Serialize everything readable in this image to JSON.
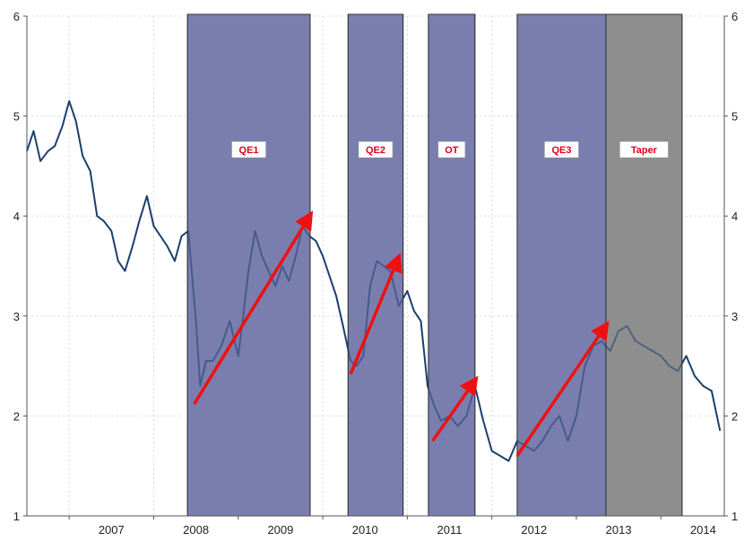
{
  "colors": {
    "qe_band": "#7a7fb0",
    "taper_band": "#8e8e8e",
    "series_line": "#1b3f6e",
    "arrow": "#f01010",
    "grid": "#d8d8d8",
    "label_text": "#e0001b"
  },
  "chart_data": {
    "type": "line",
    "title": "",
    "xlabel": "",
    "ylabel": "",
    "xlim": [
      2006.5,
      2014.75
    ],
    "ylim": [
      1,
      6
    ],
    "grid": true,
    "x_ticks": [
      {
        "value": 2007.0,
        "label": "2007"
      },
      {
        "value": 2008.0,
        "label": "2008"
      },
      {
        "value": 2009.0,
        "label": "2009"
      },
      {
        "value": 2010.0,
        "label": "2010"
      },
      {
        "value": 2011.0,
        "label": "2011"
      },
      {
        "value": 2012.0,
        "label": "2012"
      },
      {
        "value": 2013.0,
        "label": "2013"
      },
      {
        "value": 2014.0,
        "label": "2014"
      }
    ],
    "y_ticks": [
      {
        "value": 1,
        "label": "1"
      },
      {
        "value": 2,
        "label": "2"
      },
      {
        "value": 3,
        "label": "3"
      },
      {
        "value": 4,
        "label": "4"
      },
      {
        "value": 5,
        "label": "5"
      },
      {
        "value": 6,
        "label": "6"
      }
    ],
    "bands": [
      {
        "label": "QE1",
        "x0": 2008.4,
        "x1": 2009.85,
        "kind": "qe"
      },
      {
        "label": "QE2",
        "x0": 2010.3,
        "x1": 2010.95,
        "kind": "qe"
      },
      {
        "label": "OT",
        "x0": 2011.25,
        "x1": 2011.8,
        "kind": "qe"
      },
      {
        "label": "QE3",
        "x0": 2012.3,
        "x1": 2013.35,
        "kind": "qe"
      },
      {
        "label": "Taper",
        "x0": 2013.35,
        "x1": 2014.25,
        "kind": "taper"
      }
    ],
    "arrows": [
      {
        "x0": 2008.48,
        "y0": 2.12,
        "x1": 2009.83,
        "y1": 3.98
      },
      {
        "x0": 2010.33,
        "y0": 2.42,
        "x1": 2010.88,
        "y1": 3.55
      },
      {
        "x0": 2011.3,
        "y0": 1.75,
        "x1": 2011.78,
        "y1": 2.33
      },
      {
        "x0": 2012.3,
        "y0": 1.6,
        "x1": 2013.33,
        "y1": 2.88
      }
    ],
    "series": [
      {
        "x": [
          2006.5,
          2006.58,
          2006.66,
          2006.75,
          2006.83,
          2006.92,
          2007.0,
          2007.08,
          2007.16,
          2007.25,
          2007.33,
          2007.41,
          2007.5,
          2007.58,
          2007.66,
          2007.75,
          2007.83,
          2007.92,
          2008.0,
          2008.08,
          2008.16,
          2008.25,
          2008.33,
          2008.41,
          2008.45,
          2008.5,
          2008.55,
          2008.62,
          2008.7,
          2008.8,
          2008.9,
          2009.0,
          2009.06,
          2009.12,
          2009.2,
          2009.28,
          2009.36,
          2009.44,
          2009.52,
          2009.6,
          2009.68,
          2009.76,
          2009.84,
          2009.92,
          2010.0,
          2010.08,
          2010.16,
          2010.24,
          2010.33,
          2010.4,
          2010.48,
          2010.56,
          2010.64,
          2010.72,
          2010.8,
          2010.9,
          2011.0,
          2011.08,
          2011.16,
          2011.24,
          2011.32,
          2011.4,
          2011.5,
          2011.6,
          2011.7,
          2011.8,
          2011.9,
          2012.0,
          2012.1,
          2012.2,
          2012.3,
          2012.4,
          2012.5,
          2012.6,
          2012.7,
          2012.8,
          2012.9,
          2013.0,
          2013.1,
          2013.2,
          2013.3,
          2013.4,
          2013.5,
          2013.6,
          2013.7,
          2013.8,
          2013.9,
          2014.0,
          2014.1,
          2014.2,
          2014.3,
          2014.4,
          2014.5,
          2014.6,
          2014.7
        ],
        "values": [
          4.65,
          4.85,
          4.55,
          4.65,
          4.7,
          4.9,
          5.15,
          4.95,
          4.6,
          4.45,
          4.0,
          3.95,
          3.85,
          3.55,
          3.45,
          3.7,
          3.95,
          4.2,
          3.9,
          3.8,
          3.7,
          3.55,
          3.8,
          3.85,
          3.45,
          2.95,
          2.3,
          2.55,
          2.55,
          2.7,
          2.95,
          2.6,
          3.0,
          3.45,
          3.85,
          3.6,
          3.45,
          3.3,
          3.5,
          3.35,
          3.6,
          3.9,
          3.8,
          3.75,
          3.6,
          3.4,
          3.2,
          2.9,
          2.55,
          2.5,
          2.6,
          3.3,
          3.55,
          3.5,
          3.45,
          3.1,
          3.25,
          3.05,
          2.95,
          2.3,
          2.1,
          1.95,
          2.0,
          1.9,
          2.0,
          2.3,
          1.95,
          1.65,
          1.6,
          1.55,
          1.75,
          1.7,
          1.65,
          1.75,
          1.9,
          2.0,
          1.75,
          2.0,
          2.5,
          2.7,
          2.75,
          2.65,
          2.85,
          2.9,
          2.75,
          2.7,
          2.65,
          2.6,
          2.5,
          2.45,
          2.6,
          2.4,
          2.3,
          2.25,
          1.85
        ]
      }
    ]
  }
}
